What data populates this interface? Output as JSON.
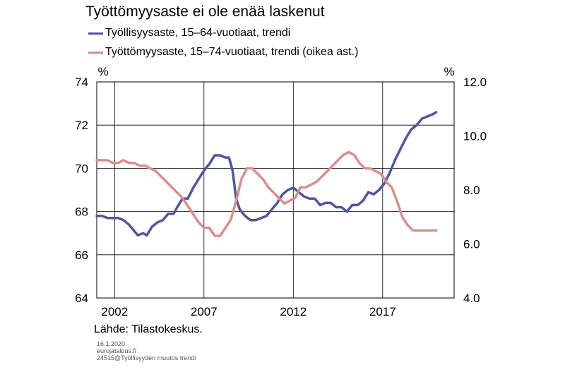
{
  "chart_data": {
    "type": "line",
    "title": "Työttömyysaste ei ole enää laskenut",
    "left_unit": "%",
    "right_unit": "%",
    "left_axis": {
      "ylim": [
        64,
        74
      ],
      "ticks": [
        "74",
        "72",
        "70",
        "68",
        "66",
        "64"
      ]
    },
    "right_axis": {
      "ylim": [
        4.0,
        12.0
      ],
      "ticks": [
        "12.0",
        "10.0",
        "8.0",
        "6.0",
        "4.0"
      ]
    },
    "x_ticks": [
      "2002",
      "2007",
      "2012",
      "2017"
    ],
    "xlim": [
      2001.0,
      2021.0
    ],
    "grid": true,
    "series": [
      {
        "name": "Työllisyysaste, 15–64-vuotiaat, trendi",
        "axis": "left",
        "color": "#4f54a6",
        "x": [
          2001.0,
          2001.3,
          2001.6,
          2001.9,
          2002.2,
          2002.5,
          2002.8,
          2003.0,
          2003.3,
          2003.6,
          2003.8,
          2004.1,
          2004.4,
          2004.7,
          2005.0,
          2005.3,
          2005.5,
          2005.8,
          2006.1,
          2006.4,
          2006.7,
          2007.0,
          2007.3,
          2007.6,
          2007.9,
          2008.2,
          2008.4,
          2008.6,
          2008.8,
          2009.0,
          2009.3,
          2009.6,
          2009.9,
          2010.2,
          2010.5,
          2010.8,
          2011.1,
          2011.4,
          2011.7,
          2012.0,
          2012.3,
          2012.6,
          2012.9,
          2013.2,
          2013.5,
          2013.8,
          2014.1,
          2014.4,
          2014.7,
          2015.0,
          2015.3,
          2015.6,
          2015.9,
          2016.2,
          2016.5,
          2016.8,
          2017.1,
          2017.4,
          2017.7,
          2018.0,
          2018.3,
          2018.6,
          2018.9,
          2019.2,
          2019.5,
          2019.8,
          2020.0
        ],
        "values": [
          67.8,
          67.8,
          67.7,
          67.7,
          67.7,
          67.6,
          67.4,
          67.2,
          66.9,
          67.0,
          66.9,
          67.3,
          67.5,
          67.6,
          67.9,
          67.9,
          68.2,
          68.6,
          68.6,
          69.1,
          69.5,
          69.9,
          70.2,
          70.6,
          70.6,
          70.5,
          70.5,
          69.9,
          68.6,
          68.1,
          67.8,
          67.6,
          67.6,
          67.7,
          67.8,
          68.1,
          68.4,
          68.8,
          69.0,
          69.1,
          68.9,
          68.7,
          68.6,
          68.6,
          68.3,
          68.4,
          68.4,
          68.2,
          68.2,
          68.0,
          68.3,
          68.3,
          68.5,
          68.9,
          68.8,
          69.0,
          69.3,
          69.8,
          70.4,
          70.9,
          71.4,
          71.8,
          72.0,
          72.3,
          72.4,
          72.5,
          72.6
        ]
      },
      {
        "name": "Työttömyysaste, 15–74-vuotiaat, trendi (oikea ast.)",
        "axis": "right",
        "color": "#de8c8c",
        "x": [
          2001.0,
          2001.3,
          2001.6,
          2001.9,
          2002.2,
          2002.5,
          2002.8,
          2003.1,
          2003.4,
          2003.7,
          2004.0,
          2004.3,
          2004.6,
          2004.9,
          2005.2,
          2005.5,
          2005.8,
          2006.1,
          2006.4,
          2006.7,
          2007.0,
          2007.3,
          2007.6,
          2007.9,
          2008.2,
          2008.5,
          2008.8,
          2009.1,
          2009.4,
          2009.7,
          2010.0,
          2010.3,
          2010.6,
          2010.9,
          2011.2,
          2011.5,
          2011.8,
          2012.1,
          2012.4,
          2012.7,
          2013.0,
          2013.3,
          2013.6,
          2013.9,
          2014.2,
          2014.5,
          2014.8,
          2015.1,
          2015.4,
          2015.7,
          2016.0,
          2016.3,
          2016.6,
          2016.9,
          2017.2,
          2017.5,
          2017.8,
          2018.1,
          2018.4,
          2018.7,
          2019.0,
          2019.3,
          2019.6,
          2020.0
        ],
        "values": [
          9.1,
          9.1,
          9.1,
          9.0,
          9.0,
          9.1,
          9.0,
          9.0,
          8.9,
          8.9,
          8.8,
          8.7,
          8.5,
          8.3,
          8.1,
          7.9,
          7.7,
          7.4,
          7.1,
          6.8,
          6.6,
          6.6,
          6.3,
          6.3,
          6.6,
          6.9,
          7.6,
          8.4,
          8.8,
          8.8,
          8.6,
          8.4,
          8.1,
          7.9,
          7.7,
          7.5,
          7.6,
          7.7,
          8.1,
          8.1,
          8.2,
          8.3,
          8.5,
          8.7,
          8.9,
          9.1,
          9.3,
          9.4,
          9.3,
          9.0,
          8.8,
          8.8,
          8.7,
          8.6,
          8.3,
          8.1,
          7.6,
          7.0,
          6.7,
          6.5,
          6.5,
          6.5,
          6.5,
          6.5
        ]
      }
    ]
  },
  "footer": {
    "source": "Lähde:  Tilastokeskus.",
    "date": "16.1.2020",
    "site": "eurojatalous.fi",
    "code": "24515@Työllisyyden  muutos trendi"
  }
}
